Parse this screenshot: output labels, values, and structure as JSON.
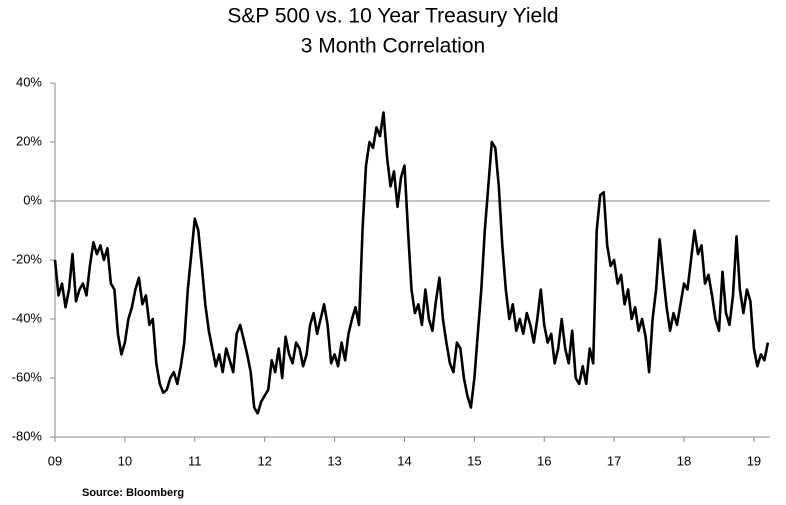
{
  "chart_data": {
    "type": "line",
    "title": "S&P 500 vs. 10 Year Treasury Yield",
    "subtitle": "3 Month Correlation",
    "source": "Source: Bloomberg",
    "x": [
      9.0,
      9.05,
      9.1,
      9.15,
      9.2,
      9.25,
      9.3,
      9.35,
      9.4,
      9.45,
      9.5,
      9.55,
      9.6,
      9.65,
      9.7,
      9.75,
      9.8,
      9.85,
      9.9,
      9.95,
      10.0,
      10.05,
      10.1,
      10.15,
      10.2,
      10.25,
      10.3,
      10.35,
      10.4,
      10.45,
      10.5,
      10.55,
      10.6,
      10.65,
      10.7,
      10.75,
      10.8,
      10.85,
      10.9,
      10.95,
      11.0,
      11.05,
      11.1,
      11.15,
      11.2,
      11.25,
      11.3,
      11.35,
      11.4,
      11.45,
      11.5,
      11.55,
      11.6,
      11.65,
      11.7,
      11.75,
      11.8,
      11.85,
      11.9,
      11.95,
      12.0,
      12.05,
      12.1,
      12.15,
      12.2,
      12.25,
      12.3,
      12.35,
      12.4,
      12.45,
      12.5,
      12.55,
      12.6,
      12.65,
      12.7,
      12.75,
      12.8,
      12.85,
      12.9,
      12.95,
      13.0,
      13.05,
      13.1,
      13.15,
      13.2,
      13.25,
      13.3,
      13.35,
      13.4,
      13.45,
      13.5,
      13.55,
      13.6,
      13.65,
      13.7,
      13.75,
      13.8,
      13.85,
      13.9,
      13.95,
      14.0,
      14.05,
      14.1,
      14.15,
      14.2,
      14.25,
      14.3,
      14.35,
      14.4,
      14.45,
      14.5,
      14.55,
      14.6,
      14.65,
      14.7,
      14.75,
      14.8,
      14.85,
      14.9,
      14.95,
      15.0,
      15.05,
      15.1,
      15.15,
      15.2,
      15.25,
      15.3,
      15.35,
      15.4,
      15.45,
      15.5,
      15.55,
      15.6,
      15.65,
      15.7,
      15.75,
      15.8,
      15.85,
      15.9,
      15.95,
      16.0,
      16.05,
      16.1,
      16.15,
      16.2,
      16.25,
      16.3,
      16.35,
      16.4,
      16.45,
      16.5,
      16.55,
      16.6,
      16.65,
      16.7,
      16.75,
      16.8,
      16.85,
      16.9,
      16.95,
      17.0,
      17.05,
      17.1,
      17.15,
      17.2,
      17.25,
      17.3,
      17.35,
      17.4,
      17.45,
      17.5,
      17.55,
      17.6,
      17.65,
      17.7,
      17.75,
      17.8,
      17.85,
      17.9,
      17.95,
      18.0,
      18.05,
      18.1,
      18.15,
      18.2,
      18.25,
      18.3,
      18.35,
      18.4,
      18.45,
      18.5,
      18.55,
      18.6,
      18.65,
      18.7,
      18.75,
      18.8,
      18.85,
      18.9,
      18.95,
      19.0,
      19.05,
      19.1,
      19.15,
      19.2
    ],
    "series": [
      {
        "color": "#000000",
        "values": [
          -20,
          -32,
          -28,
          -36,
          -30,
          -18,
          -34,
          -30,
          -28,
          -32,
          -22,
          -14,
          -18,
          -15,
          -20,
          -16,
          -28,
          -30,
          -45,
          -52,
          -48,
          -40,
          -36,
          -30,
          -26,
          -35,
          -32,
          -42,
          -40,
          -55,
          -62,
          -65,
          -64,
          -60,
          -58,
          -62,
          -56,
          -48,
          -30,
          -18,
          -6,
          -10,
          -22,
          -35,
          -44,
          -50,
          -56,
          -52,
          -58,
          -50,
          -54,
          -58,
          -45,
          -42,
          -47,
          -52,
          -58,
          -70,
          -72,
          -68,
          -66,
          -64,
          -54,
          -58,
          -50,
          -60,
          -46,
          -52,
          -55,
          -48,
          -50,
          -56,
          -52,
          -42,
          -38,
          -45,
          -40,
          -35,
          -42,
          -55,
          -52,
          -56,
          -48,
          -54,
          -45,
          -40,
          -36,
          -42,
          -10,
          12,
          20,
          18,
          25,
          22,
          30,
          15,
          5,
          10,
          -2,
          8,
          12,
          -10,
          -30,
          -38,
          -35,
          -42,
          -30,
          -40,
          -44,
          -34,
          -26,
          -40,
          -48,
          -55,
          -58,
          -48,
          -50,
          -60,
          -66,
          -70,
          -60,
          -45,
          -30,
          -10,
          5,
          20,
          18,
          5,
          -15,
          -30,
          -40,
          -35,
          -44,
          -40,
          -45,
          -38,
          -42,
          -48,
          -40,
          -30,
          -42,
          -48,
          -45,
          -55,
          -50,
          -40,
          -50,
          -55,
          -44,
          -60,
          -62,
          -56,
          -62,
          -50,
          -55,
          -10,
          2,
          3,
          -15,
          -22,
          -20,
          -28,
          -25,
          -35,
          -30,
          -40,
          -36,
          -44,
          -40,
          -46,
          -58,
          -40,
          -30,
          -13,
          -25,
          -36,
          -44,
          -38,
          -42,
          -35,
          -28,
          -30,
          -20,
          -10,
          -18,
          -15,
          -28,
          -25,
          -32,
          -40,
          -44,
          -24,
          -38,
          -42,
          -32,
          -12,
          -30,
          -38,
          -30,
          -34,
          -50,
          -56,
          -52,
          -54,
          -48
        ]
      }
    ],
    "xlim": [
      9,
      19.23
    ],
    "xticks": [
      {
        "value": 9,
        "label": "09"
      },
      10,
      11,
      12,
      13,
      14,
      15,
      16,
      17,
      18,
      19
    ],
    "ylim": [
      -80,
      40
    ],
    "yticks": [
      {
        "value": -80,
        "label": "-80%"
      },
      {
        "value": -60,
        "label": "-60%"
      },
      {
        "value": -40,
        "label": "-40%"
      },
      {
        "value": -20,
        "label": "-20%"
      },
      {
        "value": 0,
        "label": "0%"
      },
      {
        "value": 20,
        "label": "20%"
      },
      {
        "value": 40,
        "label": "40%"
      }
    ]
  }
}
